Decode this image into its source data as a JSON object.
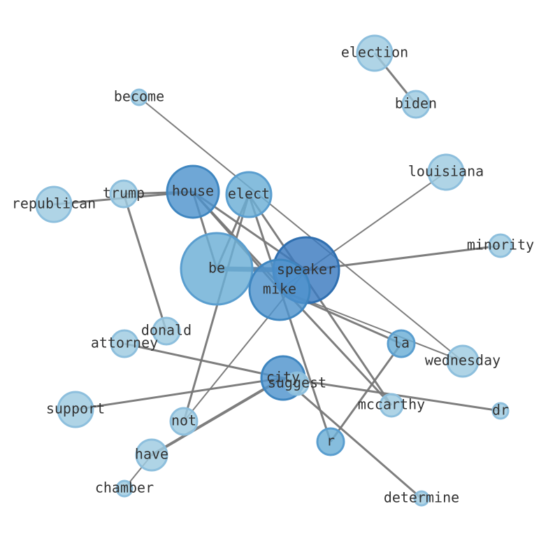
{
  "nodes": [
    {
      "label": "election"
    },
    {
      "label": "biden"
    },
    {
      "label": "become"
    },
    {
      "label": "louisiana"
    },
    {
      "label": "trump"
    },
    {
      "label": "republican"
    },
    {
      "label": "house"
    },
    {
      "label": "elect"
    },
    {
      "label": "minority"
    },
    {
      "label": "be"
    },
    {
      "label": "speaker"
    },
    {
      "label": "mike"
    },
    {
      "label": "donald"
    },
    {
      "label": "attorney"
    },
    {
      "label": "la"
    },
    {
      "label": "wednesday"
    },
    {
      "label": "city"
    },
    {
      "label": "suggest"
    },
    {
      "label": "support"
    },
    {
      "label": "mccarthy"
    },
    {
      "label": "dr"
    },
    {
      "label": "not"
    },
    {
      "label": "r"
    },
    {
      "label": "have"
    },
    {
      "label": "chamber"
    },
    {
      "label": "determine"
    }
  ]
}
